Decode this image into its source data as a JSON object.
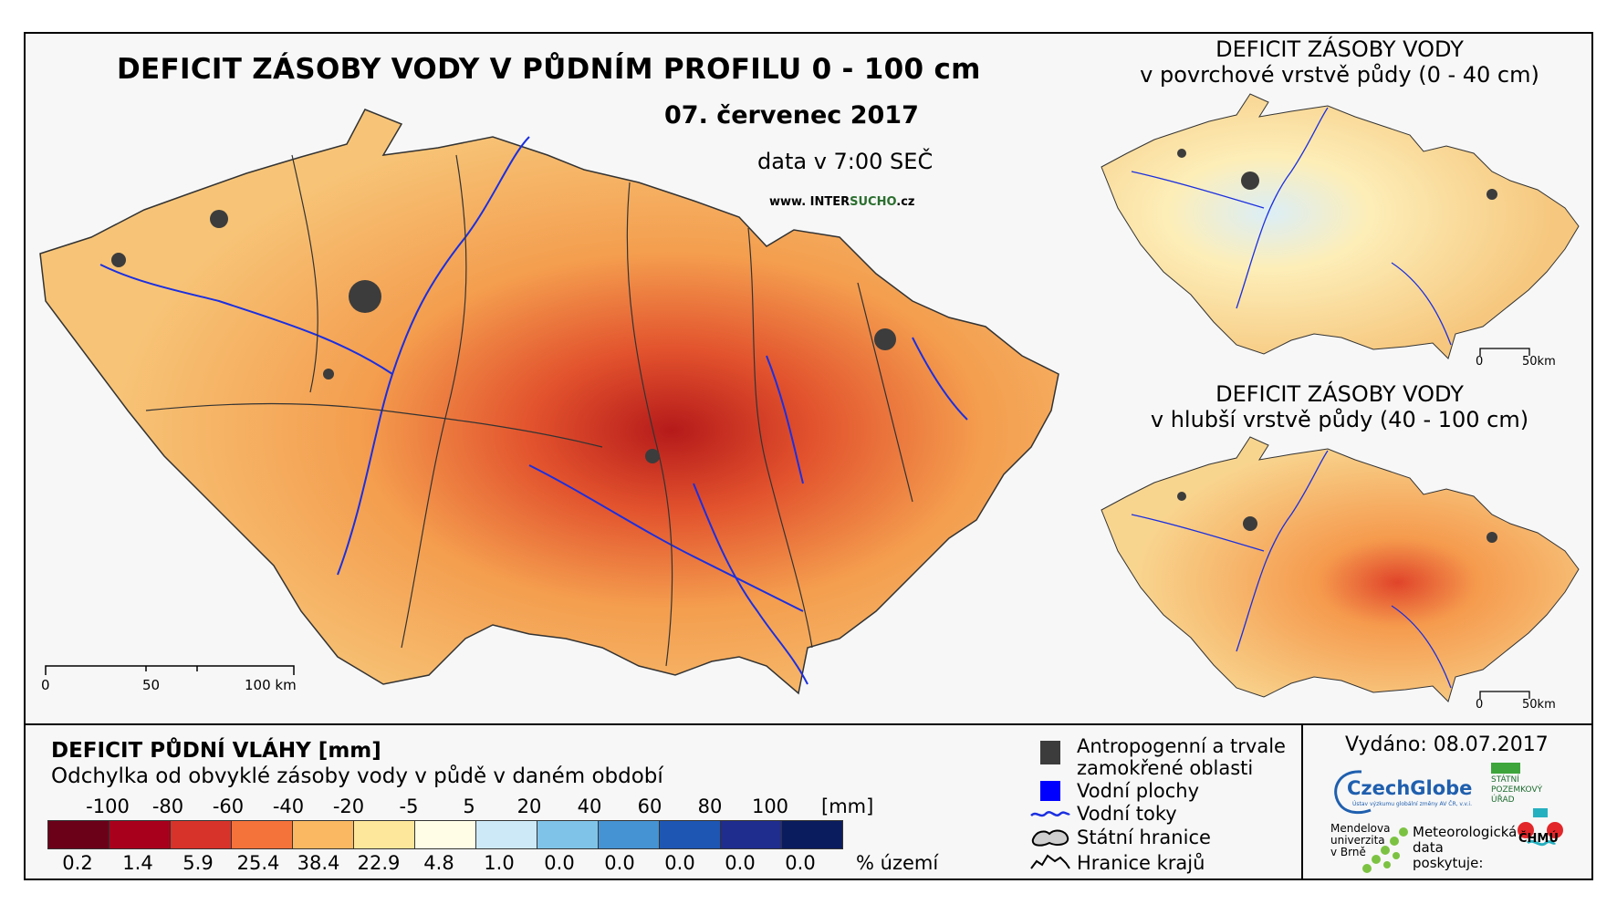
{
  "main_map": {
    "title": "DEFICIT ZÁSOBY VODY V PŮDNÍM PROFILU 0 - 100 cm",
    "date": "07. červenec 2017",
    "time": "data v 7:00 SEČ",
    "website_prefix": "www. INTER",
    "website_accent": "SUCHO",
    "website_suffix": ".cz",
    "scale": [
      "0",
      "50",
      "100 km"
    ]
  },
  "top_map": {
    "title_line1": "DEFICIT ZÁSOBY VODY",
    "title_line2": "v povrchové vrstvě půdy (0 - 40 cm)",
    "scale": [
      "0",
      "50km"
    ]
  },
  "bottom_map": {
    "title_line1": "DEFICIT ZÁSOBY VODY",
    "title_line2": "v hlubší vrstvě půdy (40 - 100 cm)",
    "scale": [
      "0",
      "50km"
    ]
  },
  "legend": {
    "title": "DEFICIT PŮDNÍ VLÁHY [mm]",
    "subtitle": "Odchylka od obvyklé zásoby vody v půdě v daném období",
    "ticks": [
      "-100",
      "-80",
      "-60",
      "-40",
      "-20",
      "-5",
      "5",
      "20",
      "40",
      "60",
      "80",
      "100"
    ],
    "unit": "[mm]",
    "colors": [
      "#6b0019",
      "#a8001c",
      "#d8332a",
      "#f4733a",
      "#f9b861",
      "#fde79a",
      "#fffde6",
      "#cde9f7",
      "#7fc4e8",
      "#4593d2",
      "#1e56b3",
      "#1f2d8f",
      "#0b1c5e"
    ],
    "percentages": [
      "0.2",
      "1.4",
      "5.9",
      "25.4",
      "38.4",
      "22.9",
      "4.8",
      "1.0",
      "0.0",
      "0.0",
      "0.0",
      "0.0",
      "0.0"
    ],
    "percent_label": "% území"
  },
  "key": {
    "anthro_line1": "Antropogenní a trvale",
    "anthro_line2": "zamokřené oblasti",
    "water_bodies": "Vodní plochy",
    "rivers": "Vodní toky",
    "state_border": "Státní hranice",
    "region_border": "Hranice krajů",
    "anthro_color": "#3c3c3c",
    "water_color": "#0000ff"
  },
  "footer": {
    "issued": "Vydáno: 08.07.2017",
    "czechglobe": "CzechGlobe",
    "czechglobe_sub": "Ústav výzkumu globální změny AV ČR, v.v.i.",
    "spu_line1": "STÁTNÍ",
    "spu_line2": "POZEMKOVÝ",
    "spu_line3": "ÚŘAD",
    "mendel_line1": "Mendelova",
    "mendel_line2": "univerzita",
    "mendel_line3": "v Brně",
    "chmu_line1": "Meteorologická",
    "chmu_line2": "data",
    "chmu_line3": "poskytuje:",
    "chmu": "ČHMÚ"
  }
}
